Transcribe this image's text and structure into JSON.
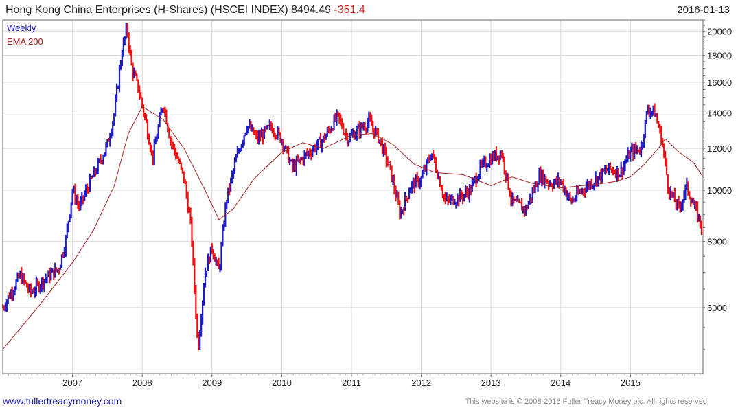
{
  "header": {
    "title": "Hong Kong China Enterprises (H-Shares) (HSCEI INDEX) 8494.49",
    "change": "-351.4",
    "date": "2016-01-13"
  },
  "legend": {
    "weekly": "Weekly",
    "ema": "EMA 200"
  },
  "footer": {
    "site": "www.fullertreacymoney.com",
    "copyright": "This website is © 2008-2016 Fuller Treacy Money plc. All rights reserved."
  },
  "colors": {
    "up": "#1c1cc8",
    "down": "#ee1111",
    "ema": "#a52020",
    "grid": "#d8d8d8",
    "frame": "#666666"
  },
  "chart_data": {
    "type": "line",
    "subtype": "weekly price bars (OHLC) with EMA 200",
    "xlim": [
      2006.0,
      2016.04
    ],
    "ylim": [
      4500,
      21000
    ],
    "yscale": "log",
    "x_ticks": [
      "2007",
      "2008",
      "2009",
      "2010",
      "2011",
      "2012",
      "2013",
      "2014",
      "2015"
    ],
    "y_ticks": [
      6000,
      8000,
      10000,
      12000,
      14000,
      16000,
      18000,
      20000
    ],
    "grid": true,
    "y_axis_side": "right",
    "legend_position": "top-left",
    "series": [
      {
        "name": "Weekly",
        "x": [
          2006.0,
          2006.25,
          2006.4,
          2006.6,
          2006.8,
          2006.9,
          2007.0,
          2007.1,
          2007.2,
          2007.35,
          2007.5,
          2007.6,
          2007.7,
          2007.78,
          2007.85,
          2007.95,
          2008.05,
          2008.15,
          2008.3,
          2008.4,
          2008.5,
          2008.6,
          2008.7,
          2008.8,
          2008.9,
          2009.0,
          2009.1,
          2009.2,
          2009.35,
          2009.5,
          2009.65,
          2009.85,
          2010.0,
          2010.15,
          2010.3,
          2010.45,
          2010.6,
          2010.8,
          2010.95,
          2011.1,
          2011.25,
          2011.4,
          2011.55,
          2011.7,
          2011.85,
          2012.0,
          2012.15,
          2012.35,
          2012.55,
          2012.7,
          2012.85,
          2013.0,
          2013.15,
          2013.3,
          2013.5,
          2013.7,
          2013.85,
          2014.0,
          2014.15,
          2014.3,
          2014.5,
          2014.7,
          2014.85,
          2015.0,
          2015.15,
          2015.25,
          2015.35,
          2015.45,
          2015.55,
          2015.7,
          2015.8,
          2015.9,
          2016.03
        ],
        "values": [
          6000,
          6900,
          6400,
          6800,
          7100,
          8000,
          10000,
          9300,
          10000,
          11000,
          12200,
          14000,
          18000,
          20300,
          17000,
          15500,
          13500,
          11500,
          14700,
          12500,
          11500,
          10500,
          8500,
          5000,
          7000,
          7800,
          7000,
          9500,
          11500,
          13300,
          12500,
          13200,
          12500,
          11000,
          11500,
          12000,
          12500,
          13800,
          12500,
          13000,
          13500,
          12500,
          11000,
          9000,
          10200,
          10500,
          11800,
          9500,
          9700,
          10000,
          11000,
          11500,
          11800,
          9500,
          9200,
          10700,
          10300,
          10400,
          9500,
          10000,
          10500,
          11000,
          10800,
          11800,
          12000,
          14300,
          14000,
          12500,
          10000,
          9200,
          10200,
          9400,
          8500
        ]
      },
      {
        "name": "EMA 200",
        "x": [
          2006.0,
          2006.5,
          2007.0,
          2007.3,
          2007.6,
          2007.8,
          2008.0,
          2008.3,
          2008.6,
          2008.9,
          2009.1,
          2009.3,
          2009.6,
          2010.0,
          2010.3,
          2010.6,
          2011.0,
          2011.3,
          2011.6,
          2011.9,
          2012.2,
          2012.6,
          2013.0,
          2013.3,
          2013.6,
          2014.0,
          2014.3,
          2014.6,
          2014.8,
          2015.0,
          2015.2,
          2015.4,
          2015.5,
          2015.7,
          2015.9,
          2016.04
        ],
        "values": [
          5000,
          6000,
          7300,
          8400,
          10200,
          12800,
          14400,
          13600,
          12000,
          10000,
          8800,
          9200,
          10500,
          11800,
          12300,
          12000,
          12700,
          12800,
          12200,
          11200,
          10800,
          10700,
          10200,
          10600,
          10300,
          10100,
          10200,
          10300,
          10400,
          10600,
          11200,
          12000,
          12500,
          11800,
          11300,
          10600
        ]
      }
    ]
  }
}
